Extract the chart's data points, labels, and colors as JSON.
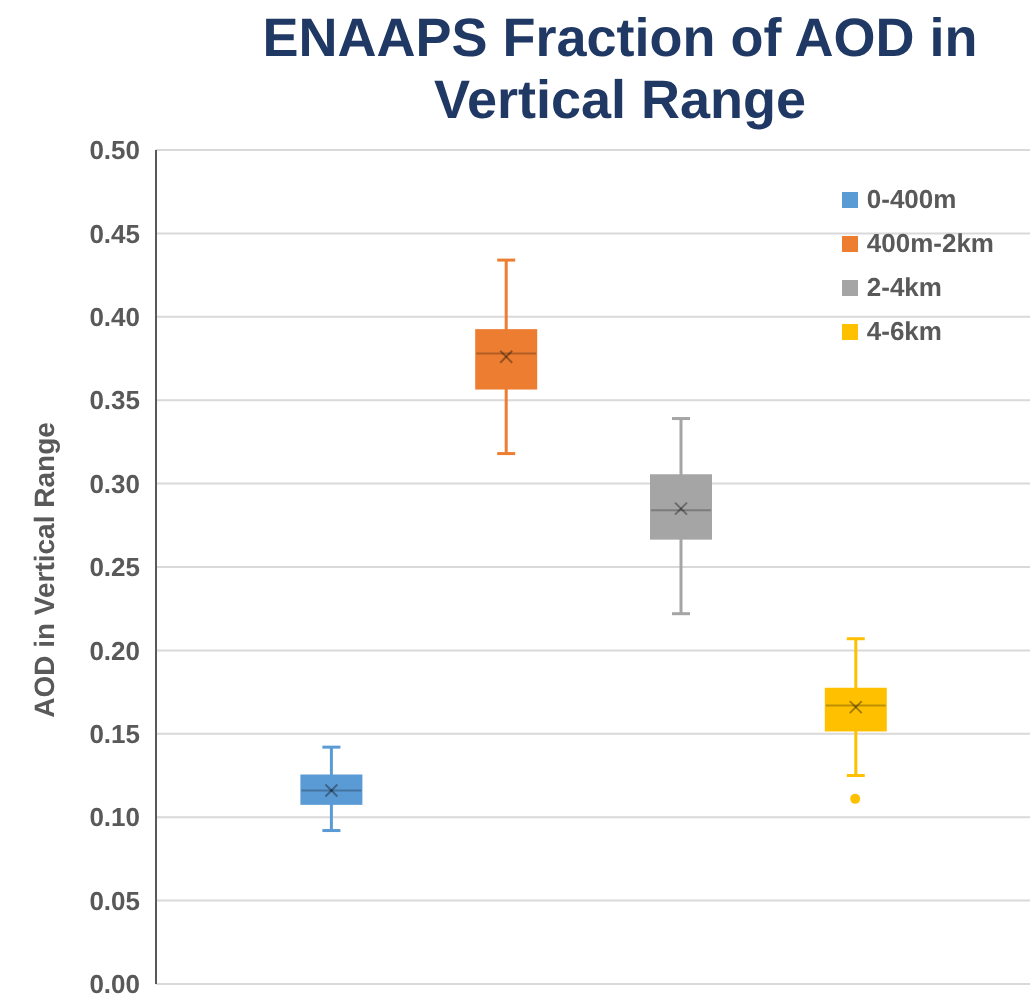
{
  "chart_data": {
    "type": "box",
    "title": "ENAAPS Fraction of AOD in Vertical Range",
    "ylabel": "AOD in Vertical Range",
    "categories": [
      null
    ],
    "series": [
      {
        "name": "0-400m",
        "color": "#5b9bd5",
        "boxes": [
          {
            "low": 0.092,
            "q1": 0.108,
            "median": 0.116,
            "q3": 0.125,
            "high": 0.142,
            "mean": 0.116
          }
        ]
      },
      {
        "name": "400m-2km",
        "color": "#ed7d31",
        "boxes": [
          {
            "low": 0.318,
            "q1": 0.357,
            "median": 0.378,
            "q3": 0.392,
            "high": 0.434,
            "mean": 0.376
          }
        ]
      },
      {
        "name": "2-4km",
        "color": "#a5a5a5",
        "boxes": [
          {
            "low": 0.222,
            "q1": 0.267,
            "median": 0.284,
            "q3": 0.305,
            "high": 0.339,
            "mean": 0.285
          }
        ]
      },
      {
        "name": "4-6km",
        "color": "#ffc000",
        "boxes": [
          {
            "low": 0.125,
            "q1": 0.152,
            "median": 0.167,
            "q3": 0.177,
            "high": 0.207,
            "mean": 0.166,
            "outliers": [
              0.111
            ]
          }
        ]
      }
    ],
    "ylim": [
      0,
      0.5
    ],
    "yticks": [
      {
        "value": 0,
        "label": "0.00"
      },
      {
        "value": 0.05,
        "label": "0.05"
      },
      {
        "value": 0.1,
        "label": "0.10"
      },
      {
        "value": 0.15,
        "label": "0.15"
      },
      {
        "value": 0.2,
        "label": "0.20"
      },
      {
        "value": 0.25,
        "label": "0.25"
      },
      {
        "value": 0.3,
        "label": "0.30"
      },
      {
        "value": 0.35,
        "label": "0.35"
      },
      {
        "value": 0.4,
        "label": "0.40"
      },
      {
        "value": 0.45,
        "label": "0.45"
      },
      {
        "value": 0.5,
        "label": "0.50"
      }
    ],
    "grid": "y",
    "legend": "top right"
  }
}
